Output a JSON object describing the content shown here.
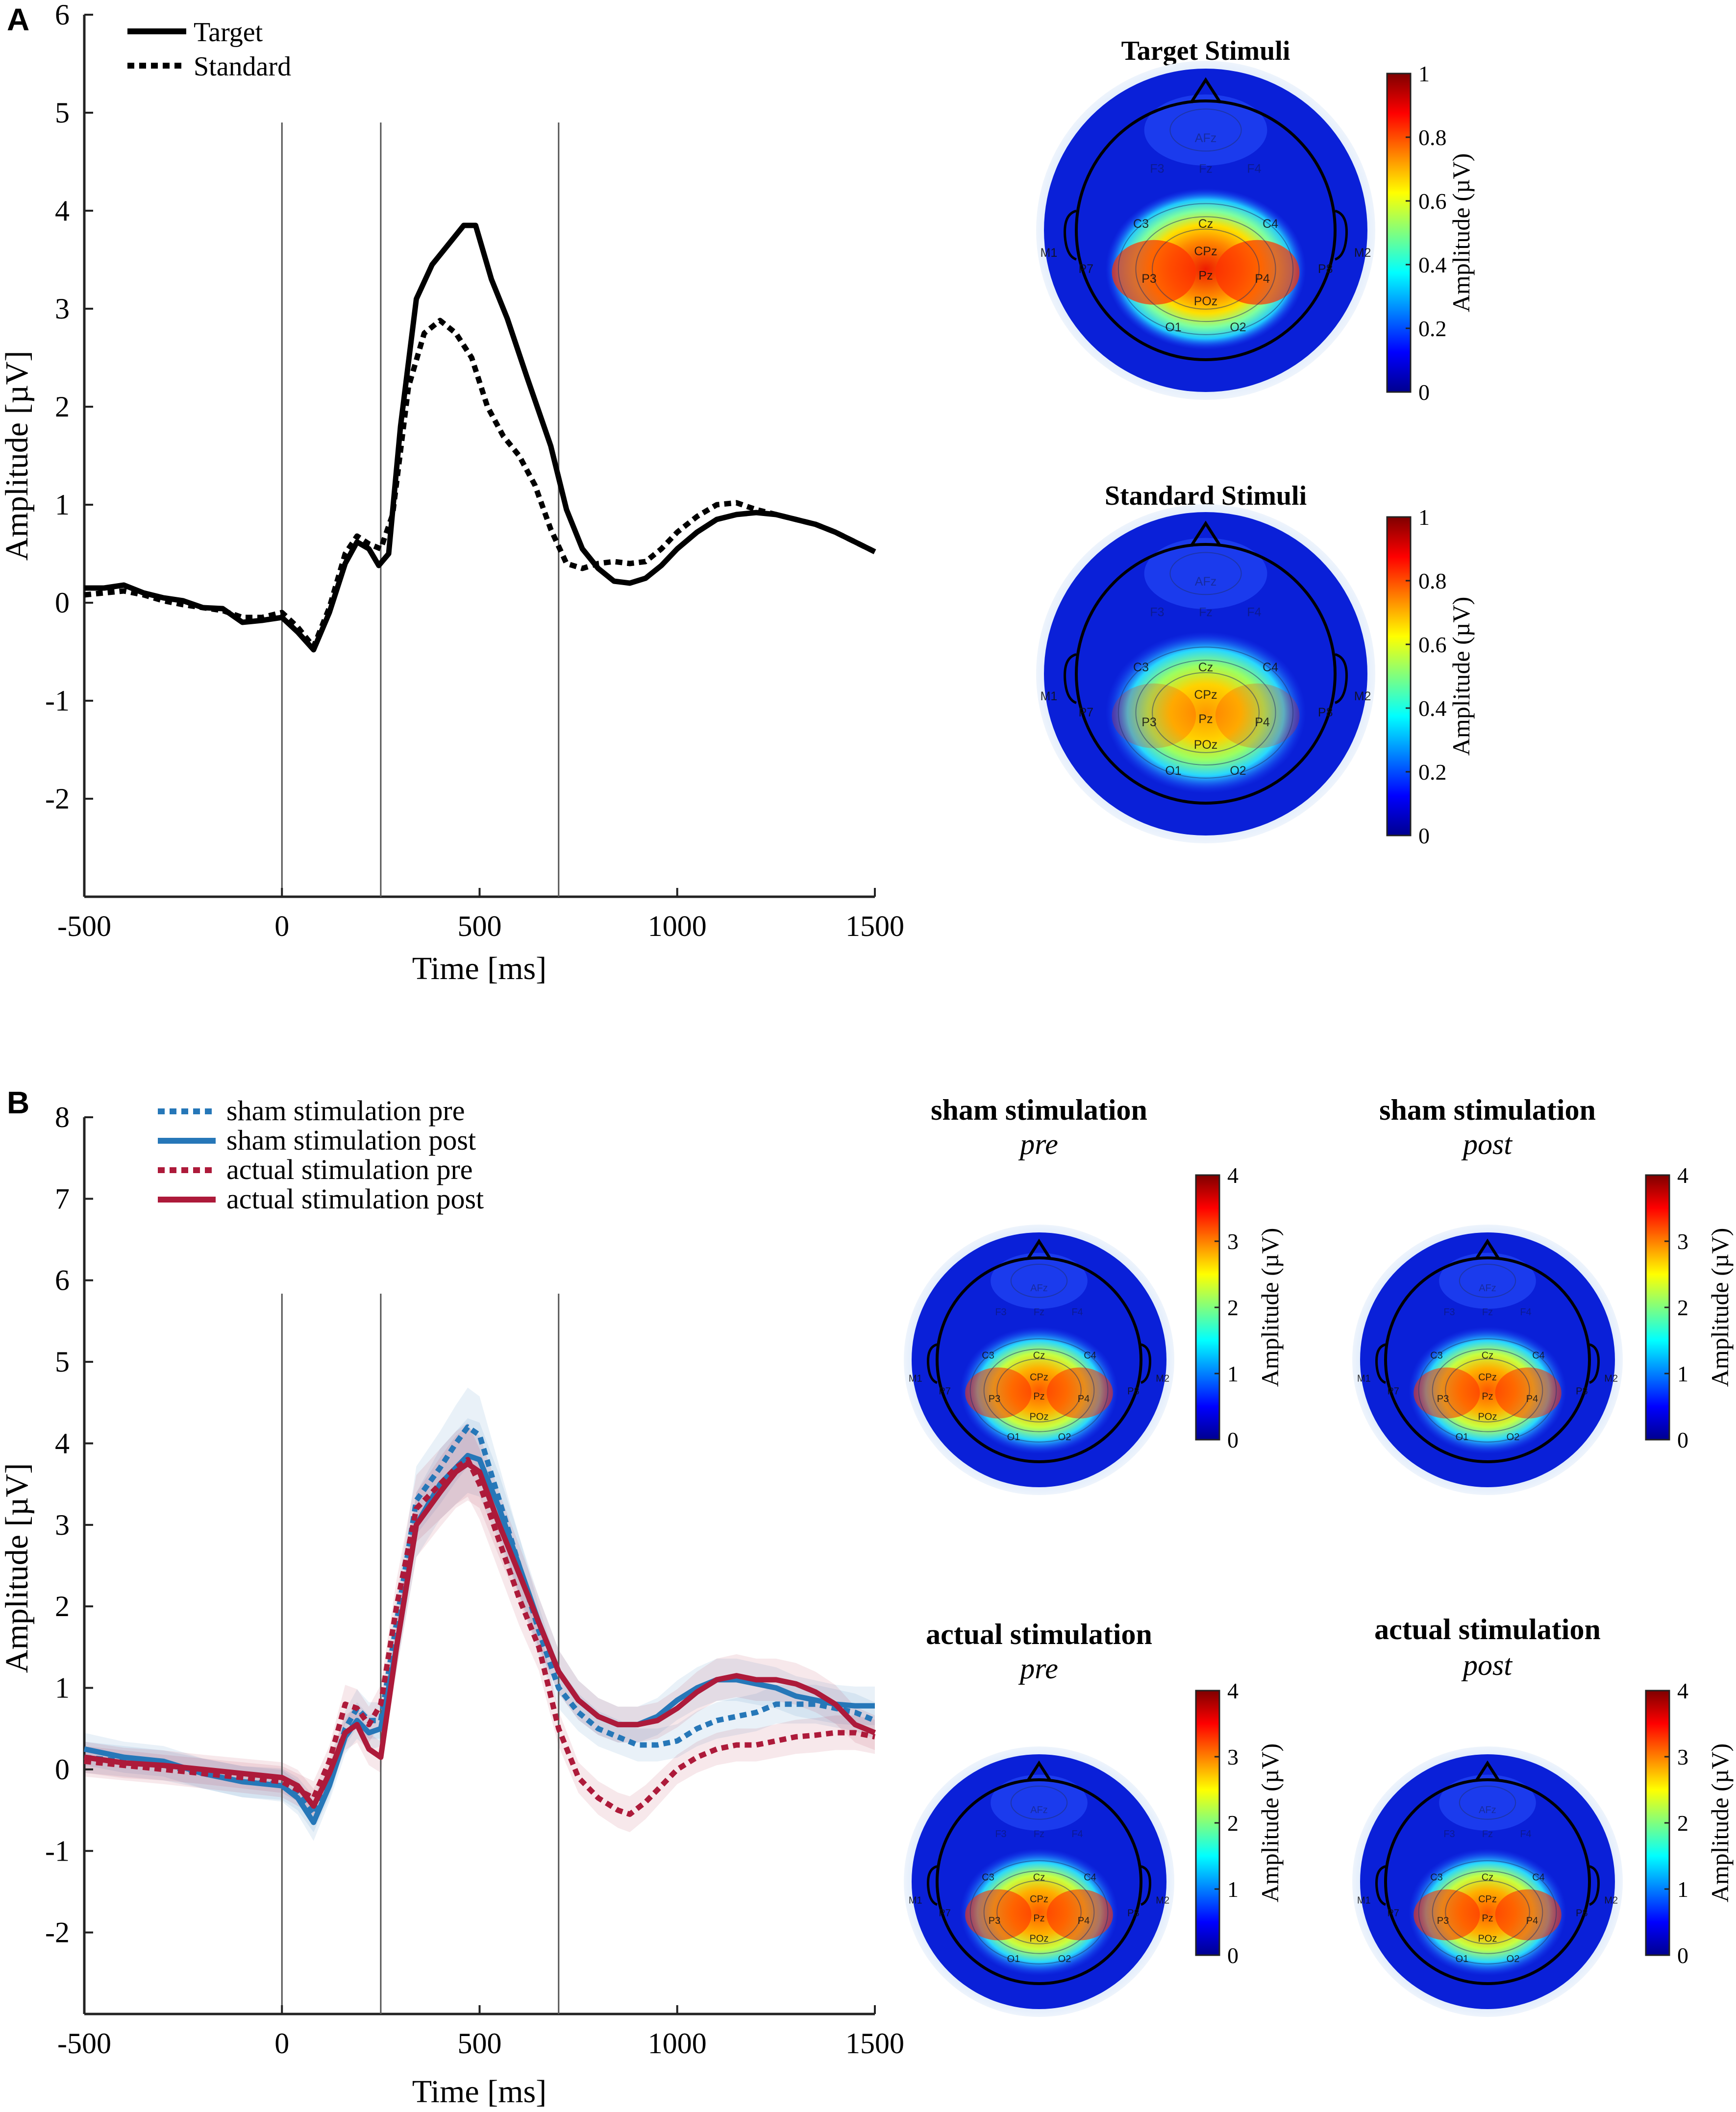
{
  "figure": {
    "panel_a_label": "A",
    "panel_b_label": "B",
    "panel_a_topo_target_title": "Target Stimuli",
    "panel_a_topo_standard_title": "Standard Stimuli",
    "topo_b1_title": "sham stimulation",
    "topo_b1_sub": "pre",
    "topo_b2_title": "sham stimulation",
    "topo_b2_sub": "post",
    "topo_b3_title": "actual stimulation",
    "topo_b3_sub": "pre",
    "topo_b4_title": "actual stimulation",
    "topo_b4_sub": "post",
    "colorbar_label": "Amplitude (µV)",
    "colorbar_a_ticks": [
      "0",
      "0.2",
      "0.4",
      "0.6",
      "0.8",
      "1"
    ],
    "colorbar_b_ticks": [
      "0",
      "1",
      "2",
      "3",
      "4"
    ],
    "electrodes": [
      "AFz",
      "F3",
      "Fz",
      "F4",
      "C3",
      "Cz",
      "C4",
      "CPz",
      "P3",
      "Pz",
      "P4",
      "POz",
      "O1",
      "O2",
      "M1",
      "M2",
      "P7",
      "P8"
    ]
  },
  "chart_data": [
    {
      "type": "line",
      "panel": "A",
      "xlabel": "Time [ms]",
      "ylabel": "Amplitude [µV]",
      "xlim": [
        -500,
        1500
      ],
      "ylim": [
        -3,
        6
      ],
      "xticks": [
        -500,
        0,
        500,
        1000,
        1500
      ],
      "yticks": [
        -2,
        -1,
        0,
        1,
        2,
        3,
        4,
        5,
        6
      ],
      "vlines": [
        0,
        250,
        700
      ],
      "legend": [
        "Target",
        "Standard"
      ],
      "series": [
        {
          "name": "Target",
          "style": "solid",
          "color": "#000000",
          "points": [
            [
              -500,
              0.15
            ],
            [
              -450,
              0.15
            ],
            [
              -400,
              0.18
            ],
            [
              -350,
              0.1
            ],
            [
              -300,
              0.05
            ],
            [
              -250,
              0.02
            ],
            [
              -200,
              -0.05
            ],
            [
              -150,
              -0.06
            ],
            [
              -100,
              -0.2
            ],
            [
              -50,
              -0.18
            ],
            [
              0,
              -0.15
            ],
            [
              40,
              -0.3
            ],
            [
              80,
              -0.48
            ],
            [
              120,
              -0.1
            ],
            [
              160,
              0.4
            ],
            [
              190,
              0.62
            ],
            [
              220,
              0.55
            ],
            [
              245,
              0.38
            ],
            [
              270,
              0.5
            ],
            [
              300,
              1.8
            ],
            [
              340,
              3.1
            ],
            [
              380,
              3.45
            ],
            [
              420,
              3.65
            ],
            [
              460,
              3.85
            ],
            [
              490,
              3.85
            ],
            [
              530,
              3.3
            ],
            [
              570,
              2.9
            ],
            [
              620,
              2.3
            ],
            [
              680,
              1.6
            ],
            [
              720,
              0.95
            ],
            [
              760,
              0.55
            ],
            [
              800,
              0.35
            ],
            [
              840,
              0.22
            ],
            [
              880,
              0.2
            ],
            [
              920,
              0.25
            ],
            [
              960,
              0.38
            ],
            [
              1000,
              0.55
            ],
            [
              1050,
              0.72
            ],
            [
              1100,
              0.85
            ],
            [
              1150,
              0.9
            ],
            [
              1200,
              0.92
            ],
            [
              1250,
              0.9
            ],
            [
              1300,
              0.85
            ],
            [
              1350,
              0.8
            ],
            [
              1400,
              0.72
            ],
            [
              1450,
              0.62
            ],
            [
              1500,
              0.52
            ]
          ]
        },
        {
          "name": "Standard",
          "style": "dotted",
          "color": "#000000",
          "points": [
            [
              -500,
              0.08
            ],
            [
              -450,
              0.1
            ],
            [
              -400,
              0.12
            ],
            [
              -350,
              0.08
            ],
            [
              -300,
              0.02
            ],
            [
              -250,
              -0.02
            ],
            [
              -200,
              -0.05
            ],
            [
              -150,
              -0.08
            ],
            [
              -100,
              -0.15
            ],
            [
              -50,
              -0.15
            ],
            [
              0,
              -0.1
            ],
            [
              40,
              -0.25
            ],
            [
              80,
              -0.45
            ],
            [
              120,
              -0.05
            ],
            [
              160,
              0.5
            ],
            [
              190,
              0.68
            ],
            [
              220,
              0.6
            ],
            [
              250,
              0.55
            ],
            [
              280,
              0.9
            ],
            [
              320,
              2.2
            ],
            [
              360,
              2.75
            ],
            [
              400,
              2.88
            ],
            [
              440,
              2.75
            ],
            [
              480,
              2.5
            ],
            [
              520,
              2.0
            ],
            [
              560,
              1.7
            ],
            [
              600,
              1.5
            ],
            [
              640,
              1.2
            ],
            [
              680,
              0.75
            ],
            [
              720,
              0.4
            ],
            [
              760,
              0.35
            ],
            [
              800,
              0.4
            ],
            [
              840,
              0.42
            ],
            [
              880,
              0.4
            ],
            [
              920,
              0.42
            ],
            [
              960,
              0.55
            ],
            [
              1000,
              0.72
            ],
            [
              1050,
              0.88
            ],
            [
              1100,
              1.0
            ],
            [
              1150,
              1.02
            ],
            [
              1200,
              0.95
            ],
            [
              1250,
              0.9
            ],
            [
              1300,
              0.85
            ],
            [
              1350,
              0.8
            ],
            [
              1400,
              0.72
            ],
            [
              1450,
              0.62
            ],
            [
              1500,
              0.52
            ]
          ]
        }
      ]
    },
    {
      "type": "line",
      "panel": "B",
      "xlabel": "Time [ms]",
      "ylabel": "Amplitude [µV]",
      "xlim": [
        -500,
        1500
      ],
      "ylim": [
        -3,
        8
      ],
      "xticks": [
        -500,
        0,
        500,
        1000,
        1500
      ],
      "yticks": [
        -2,
        -1,
        0,
        1,
        2,
        3,
        4,
        5,
        6,
        7,
        8
      ],
      "vlines": [
        0,
        250,
        700
      ],
      "legend": [
        "sham stimulation pre",
        "sham stimulation post",
        "actual stimulation pre",
        "actual stimulation post"
      ],
      "series": [
        {
          "name": "sham stimulation pre",
          "style": "dotted",
          "color": "#2677b8",
          "points": [
            [
              -500,
              0.15
            ],
            [
              -400,
              0.1
            ],
            [
              -300,
              0.05
            ],
            [
              -200,
              -0.05
            ],
            [
              -100,
              -0.15
            ],
            [
              0,
              -0.18
            ],
            [
              40,
              -0.3
            ],
            [
              80,
              -0.55
            ],
            [
              120,
              -0.15
            ],
            [
              160,
              0.5
            ],
            [
              190,
              0.75
            ],
            [
              220,
              0.6
            ],
            [
              250,
              0.6
            ],
            [
              290,
              1.8
            ],
            [
              340,
              3.3
            ],
            [
              400,
              3.7
            ],
            [
              440,
              4.0
            ],
            [
              470,
              4.2
            ],
            [
              500,
              4.1
            ],
            [
              550,
              3.3
            ],
            [
              600,
              2.5
            ],
            [
              650,
              1.7
            ],
            [
              700,
              1.0
            ],
            [
              750,
              0.7
            ],
            [
              800,
              0.5
            ],
            [
              850,
              0.4
            ],
            [
              900,
              0.3
            ],
            [
              950,
              0.3
            ],
            [
              1000,
              0.35
            ],
            [
              1050,
              0.5
            ],
            [
              1100,
              0.6
            ],
            [
              1150,
              0.65
            ],
            [
              1200,
              0.7
            ],
            [
              1250,
              0.8
            ],
            [
              1300,
              0.8
            ],
            [
              1350,
              0.8
            ],
            [
              1400,
              0.75
            ],
            [
              1450,
              0.7
            ],
            [
              1500,
              0.6
            ]
          ]
        },
        {
          "name": "sham stimulation post",
          "style": "solid",
          "color": "#2677b8",
          "points": [
            [
              -500,
              0.25
            ],
            [
              -400,
              0.15
            ],
            [
              -300,
              0.1
            ],
            [
              -200,
              -0.05
            ],
            [
              -100,
              -0.15
            ],
            [
              0,
              -0.2
            ],
            [
              40,
              -0.35
            ],
            [
              80,
              -0.65
            ],
            [
              120,
              -0.2
            ],
            [
              160,
              0.4
            ],
            [
              190,
              0.6
            ],
            [
              220,
              0.45
            ],
            [
              250,
              0.5
            ],
            [
              290,
              1.5
            ],
            [
              340,
              3.0
            ],
            [
              400,
              3.5
            ],
            [
              440,
              3.7
            ],
            [
              470,
              3.85
            ],
            [
              500,
              3.8
            ],
            [
              550,
              3.2
            ],
            [
              600,
              2.5
            ],
            [
              650,
              1.8
            ],
            [
              700,
              1.2
            ],
            [
              750,
              0.85
            ],
            [
              800,
              0.65
            ],
            [
              850,
              0.55
            ],
            [
              900,
              0.55
            ],
            [
              950,
              0.65
            ],
            [
              1000,
              0.85
            ],
            [
              1050,
              1.0
            ],
            [
              1100,
              1.1
            ],
            [
              1150,
              1.1
            ],
            [
              1200,
              1.05
            ],
            [
              1250,
              1.0
            ],
            [
              1300,
              0.9
            ],
            [
              1350,
              0.85
            ],
            [
              1400,
              0.8
            ],
            [
              1450,
              0.78
            ],
            [
              1500,
              0.78
            ]
          ]
        },
        {
          "name": "actual stimulation pre",
          "style": "dotted",
          "color": "#ad1a3a",
          "points": [
            [
              -500,
              0.1
            ],
            [
              -400,
              0.05
            ],
            [
              -300,
              0.0
            ],
            [
              -200,
              -0.05
            ],
            [
              -100,
              -0.1
            ],
            [
              0,
              -0.15
            ],
            [
              40,
              -0.25
            ],
            [
              80,
              -0.35
            ],
            [
              120,
              0.1
            ],
            [
              160,
              0.8
            ],
            [
              190,
              0.75
            ],
            [
              220,
              0.55
            ],
            [
              250,
              0.8
            ],
            [
              290,
              2.0
            ],
            [
              340,
              3.2
            ],
            [
              400,
              3.5
            ],
            [
              440,
              3.7
            ],
            [
              470,
              3.8
            ],
            [
              500,
              3.5
            ],
            [
              550,
              2.8
            ],
            [
              600,
              2.1
            ],
            [
              650,
              1.5
            ],
            [
              700,
              0.5
            ],
            [
              750,
              -0.1
            ],
            [
              800,
              -0.35
            ],
            [
              850,
              -0.5
            ],
            [
              880,
              -0.55
            ],
            [
              920,
              -0.4
            ],
            [
              960,
              -0.2
            ],
            [
              1000,
              0.0
            ],
            [
              1050,
              0.15
            ],
            [
              1100,
              0.25
            ],
            [
              1150,
              0.3
            ],
            [
              1200,
              0.3
            ],
            [
              1250,
              0.35
            ],
            [
              1300,
              0.4
            ],
            [
              1350,
              0.42
            ],
            [
              1400,
              0.45
            ],
            [
              1450,
              0.45
            ],
            [
              1500,
              0.4
            ]
          ]
        },
        {
          "name": "actual stimulation post",
          "style": "solid",
          "color": "#ad1a3a",
          "points": [
            [
              -500,
              0.15
            ],
            [
              -400,
              0.08
            ],
            [
              -300,
              0.05
            ],
            [
              -200,
              0.0
            ],
            [
              -100,
              -0.05
            ],
            [
              0,
              -0.1
            ],
            [
              40,
              -0.2
            ],
            [
              80,
              -0.45
            ],
            [
              120,
              -0.05
            ],
            [
              160,
              0.45
            ],
            [
              190,
              0.55
            ],
            [
              220,
              0.25
            ],
            [
              250,
              0.15
            ],
            [
              290,
              1.5
            ],
            [
              340,
              3.0
            ],
            [
              400,
              3.4
            ],
            [
              440,
              3.65
            ],
            [
              470,
              3.75
            ],
            [
              500,
              3.65
            ],
            [
              550,
              3.0
            ],
            [
              600,
              2.4
            ],
            [
              650,
              1.8
            ],
            [
              700,
              1.2
            ],
            [
              750,
              0.85
            ],
            [
              800,
              0.65
            ],
            [
              850,
              0.55
            ],
            [
              900,
              0.55
            ],
            [
              950,
              0.6
            ],
            [
              1000,
              0.75
            ],
            [
              1050,
              0.95
            ],
            [
              1100,
              1.1
            ],
            [
              1150,
              1.15
            ],
            [
              1200,
              1.1
            ],
            [
              1250,
              1.1
            ],
            [
              1300,
              1.05
            ],
            [
              1350,
              0.95
            ],
            [
              1400,
              0.8
            ],
            [
              1450,
              0.55
            ],
            [
              1500,
              0.45
            ]
          ]
        }
      ]
    }
  ]
}
